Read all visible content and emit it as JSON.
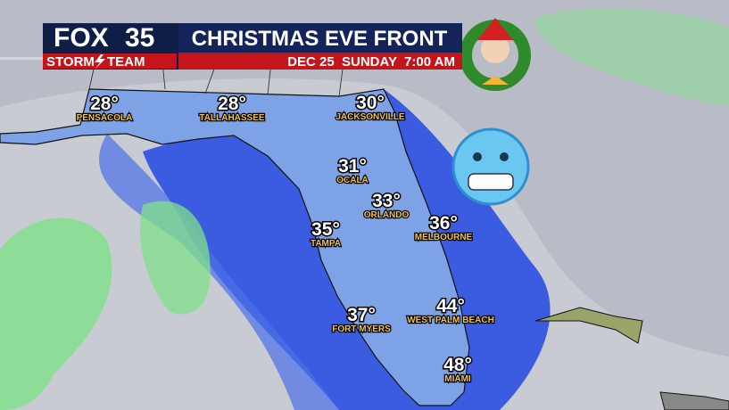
{
  "header": {
    "logo": {
      "network": "FOX",
      "channel": "35",
      "brand_left": "STORM",
      "brand_right": "TEAM"
    },
    "title": "CHRISTMAS EVE FRONT",
    "subtitle": "DEC 25  SUNDAY  7:00 AM"
  },
  "cities": [
    {
      "name": "PENSACOLA",
      "temp": "28°"
    },
    {
      "name": "TALLAHASSEE",
      "temp": "28°"
    },
    {
      "name": "JACKSONVILLE",
      "temp": "30°"
    },
    {
      "name": "OCALA",
      "temp": "31°"
    },
    {
      "name": "ORLANDO",
      "temp": "33°"
    },
    {
      "name": "TAMPA",
      "temp": "35°"
    },
    {
      "name": "MELBOURNE",
      "temp": "36°"
    },
    {
      "name": "FORT MYERS",
      "temp": "37°"
    },
    {
      "name": "WEST PALM BEACH",
      "temp": "44°"
    },
    {
      "name": "MIAMI",
      "temp": "48°"
    }
  ]
}
